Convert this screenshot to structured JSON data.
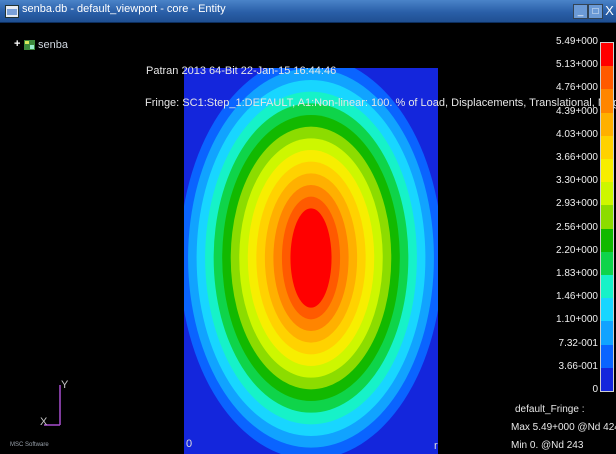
{
  "window": {
    "title": "senba.db - default_viewport - core - Entity",
    "buttons": {
      "minimize": "_",
      "maximize": "□",
      "close": "X"
    }
  },
  "tree": {
    "label": "senba"
  },
  "header": {
    "line1": "Patran 2013 64-Bit 22-Jan-15 16:44:46",
    "line2": "Fringe: SC1:Step_1:DEFAULT, A1:Non-linear: 100. % of Load, Displacements, Translational, Magnitude, (NON-LAYERED)"
  },
  "colors": {
    "levels": [
      "#1426dc",
      "#0a64ff",
      "#11a3ff",
      "#18d6ff",
      "#16f2c8",
      "#0fd44a",
      "#12b900",
      "#8cdc00",
      "#cdf700",
      "#f7ee00",
      "#ffd200",
      "#ffb000",
      "#ff8500",
      "#ff5a00",
      "#ff0000"
    ],
    "titlebar": "#2a5fa8"
  },
  "legend": {
    "ticks": [
      "5.49+000",
      "5.13+000",
      "4.76+000",
      "4.39+000",
      "4.03+000",
      "3.66+000",
      "3.30+000",
      "2.93+000",
      "2.56+000",
      "2.20+000",
      "1.83+000",
      "1.46+000",
      "1.10+000",
      "7.32-001",
      "3.66-001",
      "0"
    ],
    "fringe_name": "default_Fringe :",
    "max": "Max 5.49+000 @Nd 424",
    "min": "Min  0. @Nd 243"
  },
  "axes": {
    "x": "X",
    "y": "Y"
  },
  "plot": {
    "origin_label": "0",
    "corner_label": "r"
  },
  "logo": {
    "text": "MSC Software"
  }
}
